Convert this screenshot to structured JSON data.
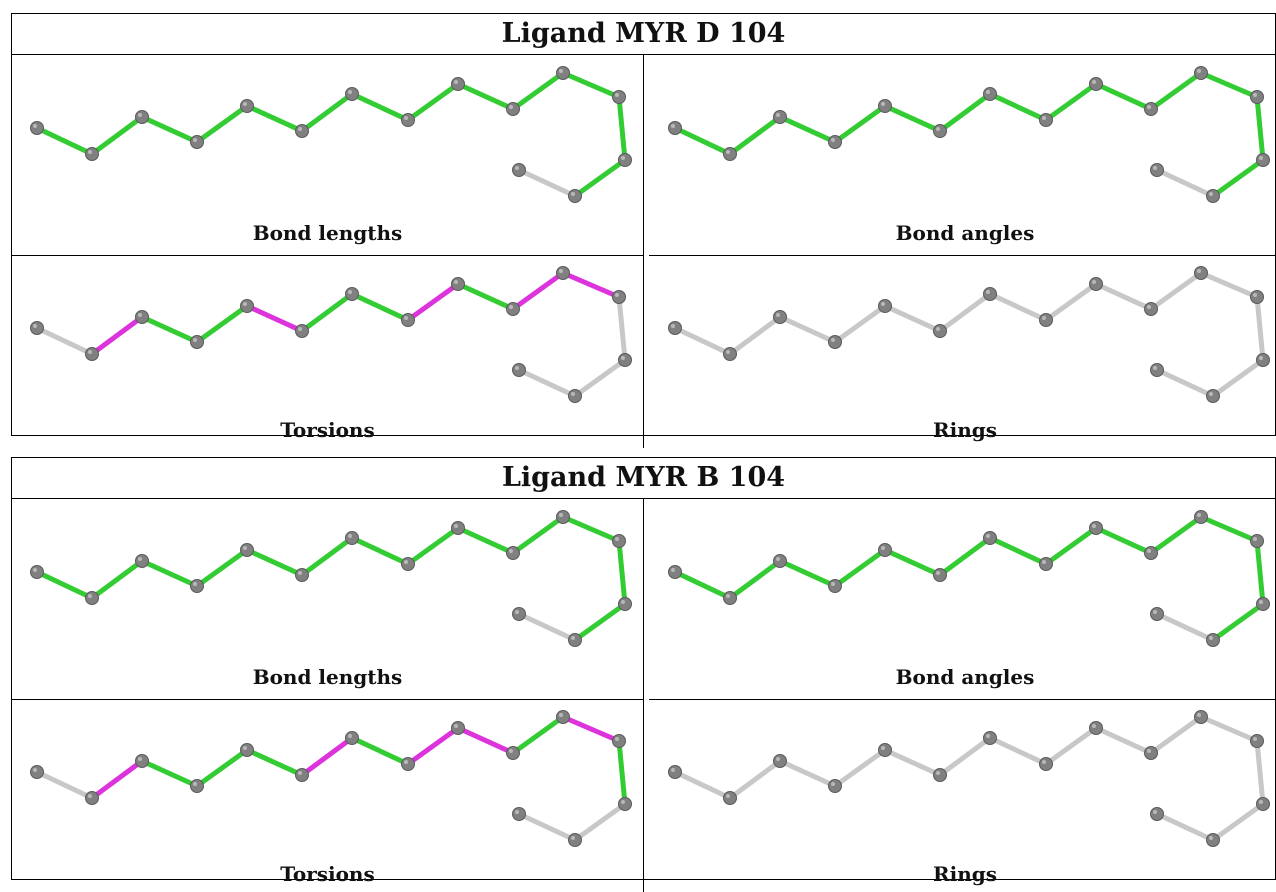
{
  "colors": {
    "bond_ok": "#33cc33",
    "bond_outlier": "#dd33dd",
    "bond_neutral": "#c8c8c8",
    "atom": "#808080"
  },
  "blocks": [
    {
      "title": "Ligand MYR D 104",
      "panels": {
        "bond_lengths": {
          "label": "Bond lengths",
          "bonds": [
            "ok",
            "ok",
            "ok",
            "ok",
            "ok",
            "ok",
            "ok",
            "ok",
            "ok",
            "ok",
            "ok",
            "ok",
            "ok"
          ]
        },
        "bond_angles": {
          "label": "Bond angles",
          "bonds": [
            "ok",
            "ok",
            "ok",
            "ok",
            "ok",
            "ok",
            "ok",
            "ok",
            "ok",
            "ok",
            "ok",
            "ok",
            "ok"
          ]
        },
        "torsions": {
          "label": "Torsions",
          "bonds": [
            "neutral",
            "outlier",
            "ok",
            "ok",
            "outlier",
            "ok",
            "ok",
            "outlier",
            "ok",
            "outlier",
            "outlier",
            "neutral",
            "neutral"
          ]
        },
        "rings": {
          "label": "Rings",
          "bonds": [
            "neutral",
            "neutral",
            "neutral",
            "neutral",
            "neutral",
            "neutral",
            "neutral",
            "neutral",
            "neutral",
            "neutral",
            "neutral",
            "neutral",
            "neutral"
          ]
        }
      }
    },
    {
      "title": "Ligand MYR B 104",
      "panels": {
        "bond_lengths": {
          "label": "Bond lengths",
          "bonds": [
            "ok",
            "ok",
            "ok",
            "ok",
            "ok",
            "ok",
            "ok",
            "ok",
            "ok",
            "ok",
            "ok",
            "ok",
            "ok"
          ]
        },
        "bond_angles": {
          "label": "Bond angles",
          "bonds": [
            "ok",
            "ok",
            "ok",
            "ok",
            "ok",
            "ok",
            "ok",
            "ok",
            "ok",
            "ok",
            "ok",
            "ok",
            "ok"
          ]
        },
        "torsions": {
          "label": "Torsions",
          "bonds": [
            "neutral",
            "outlier",
            "ok",
            "ok",
            "ok",
            "outlier",
            "ok",
            "outlier",
            "outlier",
            "ok",
            "outlier",
            "ok",
            "neutral"
          ]
        },
        "rings": {
          "label": "Rings",
          "bonds": [
            "neutral",
            "neutral",
            "neutral",
            "neutral",
            "neutral",
            "neutral",
            "neutral",
            "neutral",
            "neutral",
            "neutral",
            "neutral",
            "neutral",
            "neutral"
          ]
        }
      }
    }
  ]
}
